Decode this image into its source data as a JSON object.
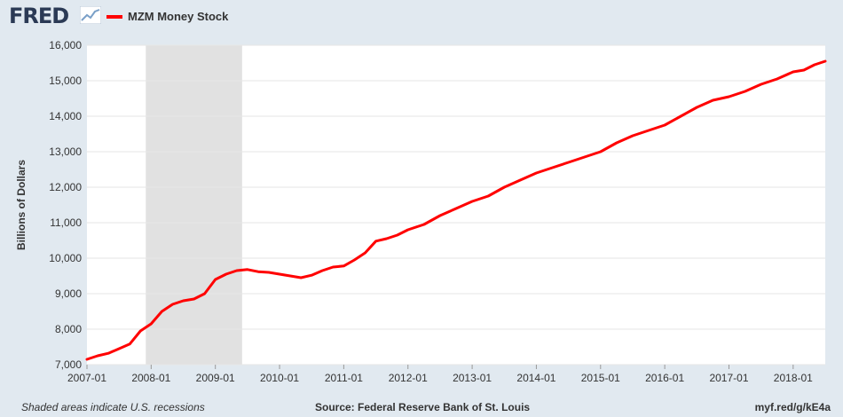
{
  "header": {
    "logo_text": "FRED",
    "logo_icon": "line-chart-icon"
  },
  "footer": {
    "note": "Shaded areas indicate U.S. recessions",
    "source": "Source: Federal Reserve Bank of St. Louis",
    "url": "myf.red/g/kE4a"
  },
  "colors": {
    "line": "#ff0000",
    "recession": "#e1e1e1",
    "background": "#e1e9f0",
    "plot": "#ffffff"
  },
  "chart_data": {
    "type": "line",
    "title": "",
    "xlabel": "",
    "ylabel": "Billions of Dollars",
    "ylim": [
      7000,
      16000
    ],
    "xlim": [
      "2007-01",
      "2018-07"
    ],
    "grid": true,
    "legend_position": "top-left",
    "yticks": [
      7000,
      8000,
      9000,
      10000,
      11000,
      12000,
      13000,
      14000,
      15000,
      16000
    ],
    "ytick_labels": [
      "7,000",
      "8,000",
      "9,000",
      "10,000",
      "11,000",
      "12,000",
      "13,000",
      "14,000",
      "15,000",
      "16,000"
    ],
    "xticks": [
      "2007-01",
      "2008-01",
      "2009-01",
      "2010-01",
      "2011-01",
      "2012-01",
      "2013-01",
      "2014-01",
      "2015-01",
      "2016-01",
      "2017-01",
      "2018-01"
    ],
    "recessions": [
      {
        "start": "2007-12",
        "end": "2009-06"
      }
    ],
    "series": [
      {
        "name": "MZM Money Stock",
        "x": [
          "2007-01",
          "2007-03",
          "2007-05",
          "2007-07",
          "2007-09",
          "2007-11",
          "2008-01",
          "2008-03",
          "2008-05",
          "2008-07",
          "2008-09",
          "2008-11",
          "2009-01",
          "2009-03",
          "2009-05",
          "2009-07",
          "2009-09",
          "2009-11",
          "2010-01",
          "2010-03",
          "2010-05",
          "2010-07",
          "2010-09",
          "2010-11",
          "2011-01",
          "2011-03",
          "2011-05",
          "2011-07",
          "2011-09",
          "2011-11",
          "2012-01",
          "2012-04",
          "2012-07",
          "2012-10",
          "2013-01",
          "2013-04",
          "2013-07",
          "2013-10",
          "2014-01",
          "2014-04",
          "2014-07",
          "2014-10",
          "2015-01",
          "2015-04",
          "2015-07",
          "2015-10",
          "2016-01",
          "2016-04",
          "2016-07",
          "2016-10",
          "2017-01",
          "2017-04",
          "2017-07",
          "2017-10",
          "2018-01",
          "2018-03",
          "2018-05",
          "2018-07"
        ],
        "values": [
          7150,
          7250,
          7320,
          7450,
          7580,
          7950,
          8150,
          8500,
          8700,
          8800,
          8850,
          9000,
          9400,
          9550,
          9650,
          9680,
          9620,
          9600,
          9550,
          9500,
          9450,
          9520,
          9650,
          9750,
          9780,
          9950,
          10150,
          10480,
          10550,
          10650,
          10800,
          10950,
          11200,
          11400,
          11600,
          11750,
          12000,
          12200,
          12400,
          12550,
          12700,
          12850,
          13000,
          13250,
          13450,
          13600,
          13750,
          14000,
          14250,
          14450,
          14550,
          14700,
          14900,
          15050,
          15250,
          15300,
          15450,
          15550
        ]
      }
    ]
  }
}
